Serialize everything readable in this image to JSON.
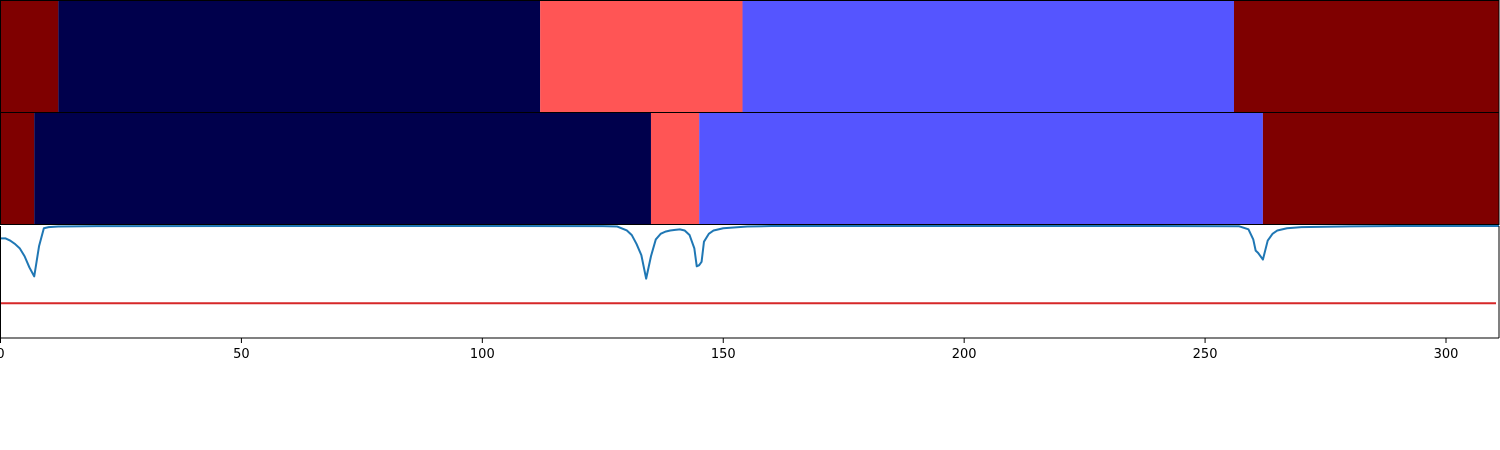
{
  "chart_data": {
    "type": "segmentation",
    "xlim": [
      0,
      311
    ],
    "xticks": [
      0,
      50,
      100,
      150,
      200,
      250,
      300
    ],
    "colors": {
      "class_0": "#7f0000",
      "class_1": "#00004c",
      "class_2": "#ff5555",
      "class_3": "#5555ff",
      "line": "#1f77b4",
      "threshold": "#d62728"
    },
    "rows": [
      {
        "segments": [
          {
            "start": 0,
            "end": 12,
            "class": "class_0"
          },
          {
            "start": 12,
            "end": 112,
            "class": "class_1"
          },
          {
            "start": 112,
            "end": 154,
            "class": "class_2"
          },
          {
            "start": 154,
            "end": 256,
            "class": "class_3"
          },
          {
            "start": 256,
            "end": 311,
            "class": "class_0"
          }
        ]
      },
      {
        "segments": [
          {
            "start": 0,
            "end": 7,
            "class": "class_0"
          },
          {
            "start": 7,
            "end": 135,
            "class": "class_1"
          },
          {
            "start": 135,
            "end": 145,
            "class": "class_2"
          },
          {
            "start": 145,
            "end": 262,
            "class": "class_3"
          },
          {
            "start": 262,
            "end": 311,
            "class": "class_0"
          }
        ]
      }
    ],
    "confidence": {
      "ylim": [
        0,
        1
      ],
      "threshold": 0.31,
      "points": [
        [
          0,
          0.89
        ],
        [
          1,
          0.89
        ],
        [
          2,
          0.87
        ],
        [
          3,
          0.84
        ],
        [
          4,
          0.8
        ],
        [
          5,
          0.73
        ],
        [
          6,
          0.63
        ],
        [
          7,
          0.55
        ],
        [
          8,
          0.82
        ],
        [
          9,
          0.98
        ],
        [
          10,
          0.99
        ],
        [
          12,
          0.995
        ],
        [
          15,
          0.997
        ],
        [
          20,
          0.999
        ],
        [
          50,
          1.0
        ],
        [
          100,
          1.0
        ],
        [
          125,
          0.999
        ],
        [
          128,
          0.995
        ],
        [
          130,
          0.96
        ],
        [
          131,
          0.92
        ],
        [
          132,
          0.84
        ],
        [
          133,
          0.74
        ],
        [
          134,
          0.53
        ],
        [
          135,
          0.73
        ],
        [
          136,
          0.88
        ],
        [
          137,
          0.93
        ],
        [
          138,
          0.95
        ],
        [
          139,
          0.96
        ],
        [
          140,
          0.965
        ],
        [
          141,
          0.97
        ],
        [
          142,
          0.96
        ],
        [
          143,
          0.92
        ],
        [
          144,
          0.8
        ],
        [
          144.5,
          0.64
        ],
        [
          145,
          0.65
        ],
        [
          145.5,
          0.68
        ],
        [
          146,
          0.86
        ],
        [
          147,
          0.93
        ],
        [
          148,
          0.96
        ],
        [
          150,
          0.98
        ],
        [
          155,
          0.995
        ],
        [
          160,
          1.0
        ],
        [
          200,
          1.0
        ],
        [
          240,
          1.0
        ],
        [
          257,
          0.998
        ],
        [
          259,
          0.97
        ],
        [
          260,
          0.88
        ],
        [
          260.5,
          0.78
        ],
        [
          261,
          0.76
        ],
        [
          262,
          0.7
        ],
        [
          263,
          0.87
        ],
        [
          264,
          0.93
        ],
        [
          265,
          0.96
        ],
        [
          267,
          0.98
        ],
        [
          270,
          0.99
        ],
        [
          280,
          0.997
        ],
        [
          290,
          1.0
        ],
        [
          311,
          1.0
        ]
      ]
    }
  }
}
